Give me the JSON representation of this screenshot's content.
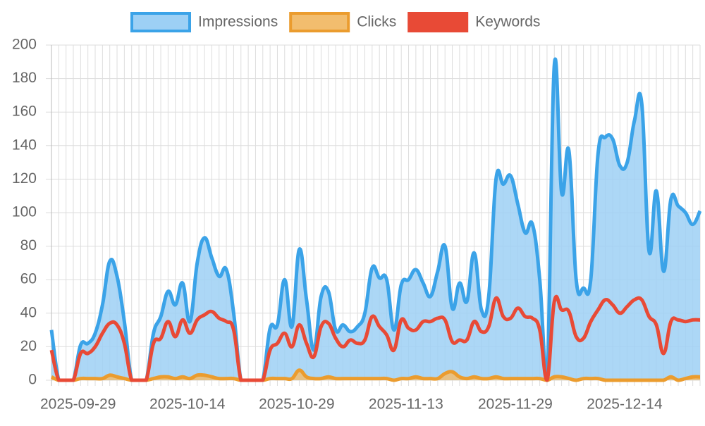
{
  "chart_data": {
    "type": "line",
    "categories": [
      null,
      null,
      null,
      null,
      null,
      "2025-09-29",
      null,
      null,
      null,
      null,
      null,
      null,
      null,
      null,
      null,
      null,
      null,
      null,
      null,
      null,
      "2025-10-14",
      null,
      null,
      null,
      null,
      null,
      null,
      null,
      null,
      null,
      null,
      null,
      null,
      null,
      null,
      "2025-10-29",
      null,
      null,
      null,
      null,
      null,
      null,
      null,
      null,
      null,
      null,
      null,
      null,
      null,
      null,
      "2025-11-13",
      null,
      null,
      null,
      null,
      null,
      null,
      null,
      null,
      null,
      null,
      null,
      null,
      null,
      null,
      "2025-11-29",
      null,
      null,
      null,
      null,
      null,
      null,
      null,
      null,
      null,
      null,
      null,
      null,
      null,
      null,
      "2025-12-14",
      null,
      null,
      null,
      null,
      null,
      null,
      null,
      null,
      null
    ],
    "series": [
      {
        "name": "Impressions",
        "color": "#3ba3e8",
        "fill_color": "#9dd0f5",
        "values": [
          30,
          0,
          0,
          0,
          21,
          22,
          28,
          45,
          71,
          62,
          35,
          0,
          0,
          0,
          28,
          38,
          53,
          45,
          58,
          35,
          70,
          85,
          73,
          62,
          66,
          40,
          0,
          0,
          0,
          0,
          31,
          33,
          60,
          32,
          78,
          48,
          18,
          50,
          53,
          30,
          33,
          29,
          32,
          40,
          67,
          61,
          60,
          30,
          57,
          60,
          66,
          58,
          50,
          65,
          80,
          43,
          58,
          47,
          76,
          42,
          50,
          120,
          117,
          122,
          105,
          88,
          93,
          60,
          0,
          188,
          112,
          137,
          60,
          55,
          60,
          135,
          145,
          144,
          128,
          130,
          155,
          165,
          77,
          113,
          65,
          108,
          104,
          100,
          93,
          101
        ]
      },
      {
        "name": "Clicks",
        "color": "#eb9c2e",
        "fill_color": "#f2bd6e",
        "values": [
          2,
          0,
          0,
          0,
          1,
          1,
          1,
          1,
          3,
          2,
          1,
          0,
          0,
          0,
          1,
          2,
          2,
          1,
          2,
          1,
          3,
          3,
          2,
          1,
          1,
          1,
          0,
          0,
          0,
          0,
          1,
          1,
          1,
          1,
          6,
          2,
          1,
          1,
          2,
          1,
          1,
          1,
          1,
          1,
          1,
          1,
          1,
          0,
          1,
          1,
          2,
          1,
          1,
          1,
          4,
          5,
          2,
          1,
          2,
          1,
          1,
          2,
          1,
          1,
          1,
          1,
          1,
          1,
          0,
          2,
          2,
          1,
          0,
          1,
          1,
          1,
          0,
          0,
          0,
          0,
          0,
          0,
          0,
          0,
          0,
          2,
          0,
          1,
          2,
          2
        ]
      },
      {
        "name": "Keywords",
        "color": "#e84a36",
        "values": [
          18,
          0,
          0,
          0,
          16,
          16,
          20,
          28,
          34,
          33,
          22,
          0,
          0,
          0,
          22,
          25,
          35,
          26,
          36,
          28,
          36,
          39,
          41,
          37,
          35,
          30,
          0,
          0,
          0,
          0,
          18,
          22,
          28,
          20,
          33,
          22,
          14,
          32,
          34,
          25,
          20,
          24,
          22,
          24,
          38,
          32,
          27,
          18,
          36,
          31,
          30,
          35,
          35,
          37,
          36,
          23,
          24,
          24,
          35,
          29,
          32,
          49,
          38,
          37,
          43,
          38,
          37,
          30,
          0,
          47,
          42,
          41,
          26,
          25,
          35,
          42,
          48,
          45,
          40,
          44,
          48,
          48,
          38,
          33,
          16,
          35,
          36,
          35,
          36,
          36
        ]
      }
    ],
    "ylim": [
      0,
      200
    ],
    "yticks": [
      0,
      20,
      40,
      60,
      80,
      100,
      120,
      140,
      160,
      180,
      200
    ],
    "grid": true,
    "legend": "top"
  }
}
